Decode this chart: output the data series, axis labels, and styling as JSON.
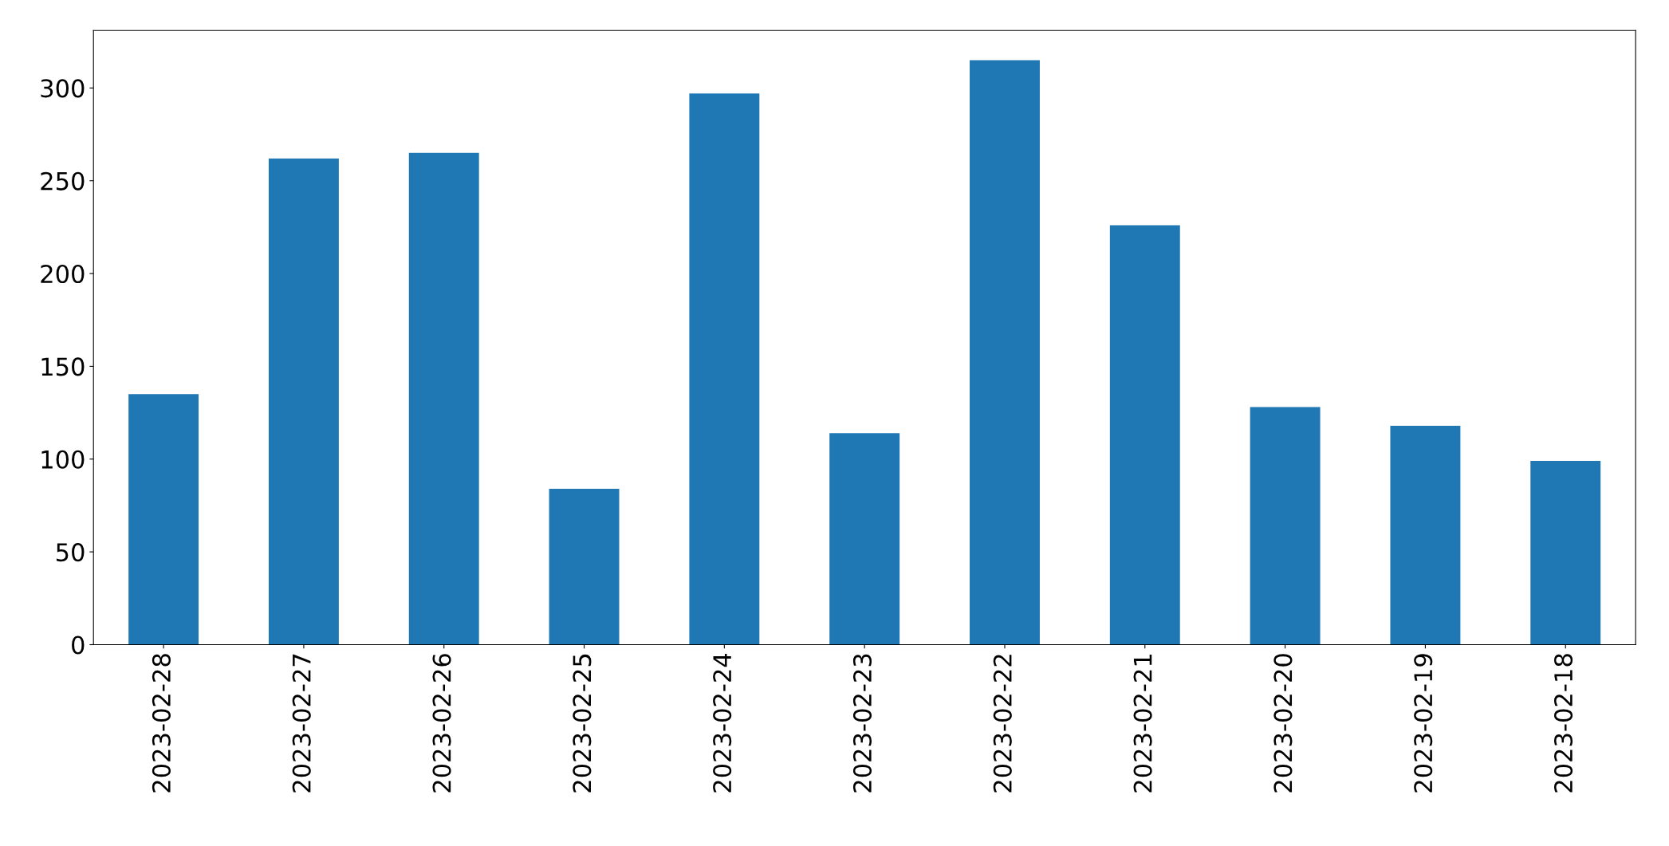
{
  "chart_data": {
    "type": "bar",
    "categories": [
      "2023-02-28",
      "2023-02-27",
      "2023-02-26",
      "2023-02-25",
      "2023-02-24",
      "2023-02-23",
      "2023-02-22",
      "2023-02-21",
      "2023-02-20",
      "2023-02-19",
      "2023-02-18"
    ],
    "values": [
      135,
      262,
      265,
      84,
      297,
      114,
      315,
      226,
      128,
      118,
      99
    ],
    "color": "#1f77b4",
    "ylim": [
      0,
      331
    ],
    "yticks": [
      0,
      50,
      100,
      150,
      200,
      250,
      300
    ],
    "grid": false
  }
}
